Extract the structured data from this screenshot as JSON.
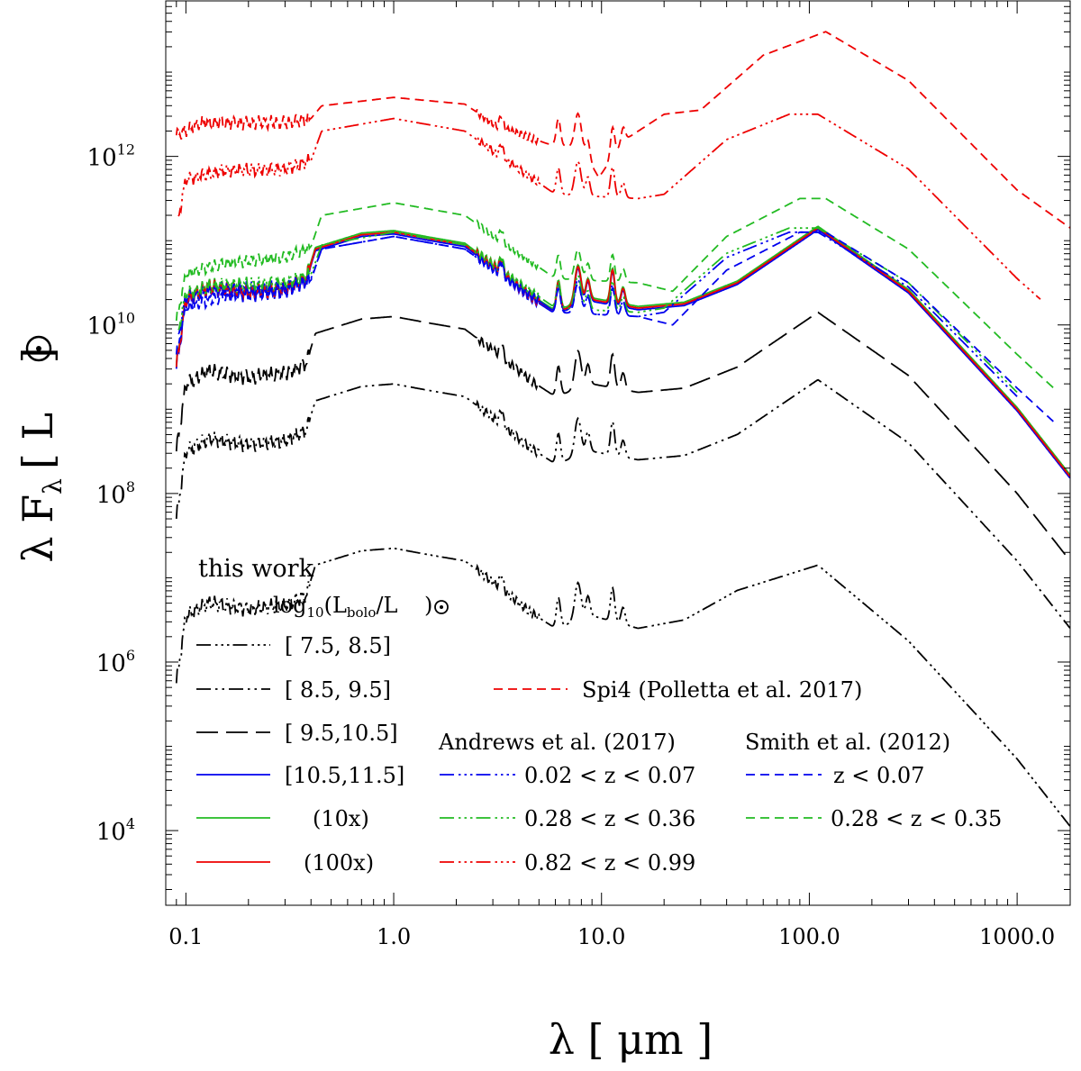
{
  "chart_data": {
    "type": "line",
    "title": "",
    "xlabel": "λ [ μm ]",
    "ylabel": "λ F",
    "ylabel_sub": "λ",
    "ylabel_unit_open": "[ L",
    "ylabel_unit_close": " ]",
    "xscale": "log",
    "yscale": "log",
    "xlim": [
      0.08,
      1800
    ],
    "ylim": [
      1300,
      70000000000000
    ],
    "grid": false,
    "xticks": [
      {
        "value": 0.1,
        "label": "0.1"
      },
      {
        "value": 1,
        "label": "1.0"
      },
      {
        "value": 10,
        "label": "10.0"
      },
      {
        "value": 100,
        "label": "100.0"
      },
      {
        "value": 1000,
        "label": "1000.0"
      }
    ],
    "yticks": [
      {
        "value": 10000,
        "base": "10",
        "exp": "4"
      },
      {
        "value": 1000000,
        "base": "10",
        "exp": "6"
      },
      {
        "value": 100000000,
        "base": "10",
        "exp": "8"
      },
      {
        "value": 10000000000,
        "base": "10",
        "exp": "10"
      },
      {
        "value": 1000000000000,
        "base": "10",
        "exp": "12"
      }
    ],
    "legend": {
      "placement": "bottom-left",
      "title": "this work",
      "subtitle_prefix": "log",
      "subtitle_sub": "10",
      "subtitle_mid": "(L",
      "subtitle_sub2": "bolo",
      "subtitle_end": "/L",
      "subtitle_close": ")",
      "entries": [
        {
          "label": "[ 7.5, 8.5]",
          "color": "#000000",
          "dash": "dddl"
        },
        {
          "label": "[ 8.5, 9.5]",
          "color": "#000000",
          "dash": "ddl"
        },
        {
          "label": "[ 9.5,10.5]",
          "color": "#000000",
          "dash": "longdash"
        },
        {
          "label": "[10.5,11.5]",
          "color": "#0000ee",
          "dash": "solid"
        },
        {
          "label": "(10x)",
          "color": "#22bb22",
          "dash": "solid"
        },
        {
          "label": "(100x)",
          "color": "#ee0000",
          "dash": "solid"
        }
      ],
      "spi4": {
        "label": "Spi4 (Polletta et al. 2017)",
        "color": "#ee0000",
        "dash": "dash"
      },
      "andrews": {
        "title": "Andrews et al. (2017)",
        "entries": [
          {
            "label": "0.02 < z < 0.07",
            "color": "#0000ee",
            "dash": "dddl"
          },
          {
            "label": "0.28 < z < 0.36",
            "color": "#22bb22",
            "dash": "dddl"
          },
          {
            "label": "0.82 < z < 0.99",
            "color": "#ee0000",
            "dash": "dddl"
          }
        ]
      },
      "smith": {
        "title": "Smith et al. (2012)",
        "entries": [
          {
            "label": "z < 0.07",
            "color": "#0000ee",
            "dash": "dash"
          },
          {
            "label": "0.28 < z < 0.35",
            "color": "#22bb22",
            "dash": "dash"
          }
        ]
      }
    },
    "series": [
      {
        "name": "this work [7.5, 8.5]",
        "color": "#000000",
        "dash": "dddl",
        "scale": 1,
        "template": "tw",
        "logL": 7.35
      },
      {
        "name": "this work [8.5, 9.5]",
        "color": "#000000",
        "dash": "ddl",
        "scale": 1,
        "template": "tw",
        "logL": 9.3
      },
      {
        "name": "this work [9.5, 10.5]",
        "color": "#000000",
        "dash": "longdash",
        "scale": 1,
        "template": "tw",
        "logL": 10.1
      },
      {
        "name": "this work [10.5, 11.5]",
        "color": "#0000ee",
        "dash": "solid",
        "scale": 1,
        "template": "tw",
        "logL": 11.08
      },
      {
        "name": "this work (10x)",
        "color": "#22bb22",
        "dash": "solid",
        "scale": 10,
        "template": "tw",
        "logL": 11.12
      },
      {
        "name": "this work (100x)",
        "color": "#ee0000",
        "dash": "solid",
        "scale": 100,
        "template": "tw",
        "logL": 11.1
      },
      {
        "name": "Andrews 0.02<z<0.07",
        "color": "#0000ee",
        "dash": "dddl",
        "template": "and",
        "logL": 11.05
      },
      {
        "name": "Andrews 0.28<z<0.36",
        "color": "#22bb22",
        "dash": "dddl",
        "template": "and",
        "logL": 11.1
      },
      {
        "name": "Andrews 0.82<z<0.99",
        "color": "#ee0000",
        "dash": "dddl",
        "template": "and",
        "logL": 12.45
      },
      {
        "name": "Smith z<0.07",
        "color": "#0000ee",
        "dash": "dash",
        "template": "smith",
        "logL": 11.05
      },
      {
        "name": "Smith 0.28<z<0.35",
        "color": "#22bb22",
        "dash": "dash",
        "template": "smith",
        "logL": 11.45
      },
      {
        "name": "Spi4 (Polletta et al. 2017)",
        "color": "#ee0000",
        "dash": "dash",
        "template": "spi4",
        "logL": 12.7
      }
    ]
  }
}
